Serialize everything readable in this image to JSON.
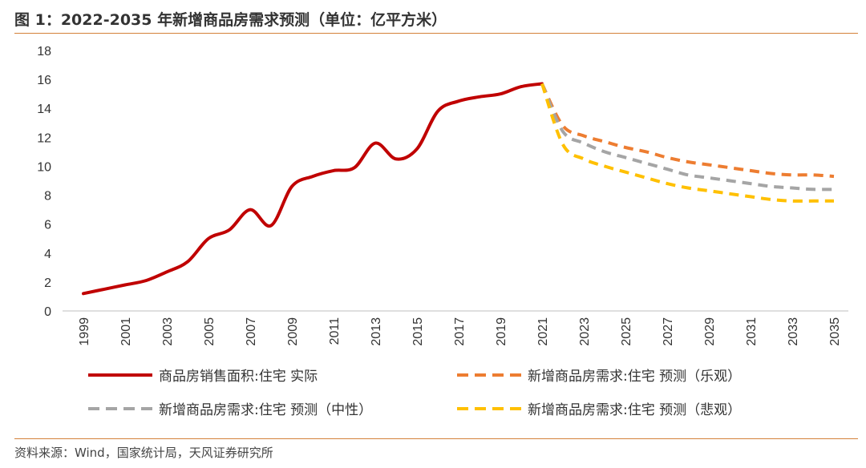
{
  "header": {
    "title": "图 1：2022-2035 年新增商品房需求预测（单位：亿平方米）"
  },
  "footer": {
    "source": "资料来源：Wind，国家统计局，天风证券研究所"
  },
  "colors": {
    "actual": "#c00000",
    "optimistic": "#ed7d31",
    "neutral": "#a5a5a5",
    "pessimistic": "#ffc000",
    "rule": "#d4813a"
  },
  "chart_data": {
    "type": "line",
    "title": "2022-2035 年新增商品房需求预测",
    "ylabel": "亿平方米",
    "ylim": [
      0,
      18
    ],
    "yticks": [
      "0",
      "2",
      "4",
      "6",
      "8",
      "10",
      "12",
      "14",
      "16",
      "18"
    ],
    "xticks": [
      "1999",
      "2001",
      "2003",
      "2005",
      "2007",
      "2009",
      "2011",
      "2013",
      "2015",
      "2017",
      "2019",
      "2021",
      "2023",
      "2025",
      "2027",
      "2029",
      "2031",
      "2033",
      "2035"
    ],
    "grid": false,
    "legend_position": "bottom",
    "series": [
      {
        "name": "商品房销售面积:住宅 实际",
        "style": "solid",
        "x": [
          1999,
          2000,
          2001,
          2002,
          2003,
          2004,
          2005,
          2006,
          2007,
          2008,
          2009,
          2010,
          2011,
          2012,
          2013,
          2014,
          2015,
          2016,
          2017,
          2018,
          2019,
          2020,
          2021
        ],
        "values": [
          1.2,
          1.5,
          1.8,
          2.1,
          2.7,
          3.4,
          5.0,
          5.6,
          7.0,
          5.9,
          8.6,
          9.3,
          9.7,
          9.9,
          11.6,
          10.5,
          11.2,
          13.8,
          14.5,
          14.8,
          15.0,
          15.5,
          15.7
        ]
      },
      {
        "name": "新增商品房需求:住宅 预测（乐观）",
        "style": "dashed",
        "x": [
          2021,
          2022,
          2023,
          2024,
          2025,
          2026,
          2027,
          2028,
          2029,
          2030,
          2031,
          2032,
          2033,
          2034,
          2035
        ],
        "values": [
          15.7,
          12.8,
          12.1,
          11.7,
          11.3,
          11.0,
          10.6,
          10.3,
          10.1,
          9.9,
          9.7,
          9.5,
          9.4,
          9.4,
          9.3
        ]
      },
      {
        "name": "新增商品房需求:住宅 预测（中性）",
        "style": "dashed",
        "x": [
          2021,
          2022,
          2023,
          2024,
          2025,
          2026,
          2027,
          2028,
          2029,
          2030,
          2031,
          2032,
          2033,
          2034,
          2035
        ],
        "values": [
          15.7,
          12.4,
          11.6,
          11.0,
          10.6,
          10.2,
          9.8,
          9.4,
          9.2,
          9.0,
          8.8,
          8.6,
          8.5,
          8.4,
          8.4
        ]
      },
      {
        "name": "新增商品房需求:住宅 预测（悲观）",
        "style": "dashed",
        "x": [
          2021,
          2022,
          2023,
          2024,
          2025,
          2026,
          2027,
          2028,
          2029,
          2030,
          2031,
          2032,
          2033,
          2034,
          2035
        ],
        "values": [
          15.7,
          11.5,
          10.5,
          10.0,
          9.6,
          9.2,
          8.8,
          8.5,
          8.3,
          8.1,
          7.9,
          7.7,
          7.6,
          7.6,
          7.6
        ]
      }
    ]
  }
}
